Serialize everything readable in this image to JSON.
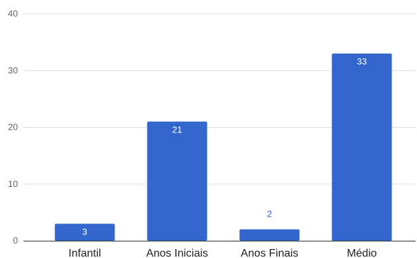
{
  "chart_data": {
    "type": "bar",
    "categories": [
      "Infantil",
      "Anos Iniciais",
      "Anos Finais",
      "Médio"
    ],
    "values": [
      3,
      21,
      2,
      33
    ],
    "data_labels": [
      "3",
      "21",
      "2",
      "33"
    ],
    "yticks": [
      0,
      10,
      20,
      30,
      40
    ],
    "ytick_labels": [
      "0",
      "10",
      "20",
      "30",
      "40"
    ],
    "ylim": [
      0,
      40
    ],
    "grid": true,
    "legend": "none",
    "colors": {
      "bar": "#3366cc",
      "grid": "#dddddd",
      "axis": "#333333",
      "label_inside": "#ffffff",
      "label_outside": "#3366cc"
    }
  }
}
